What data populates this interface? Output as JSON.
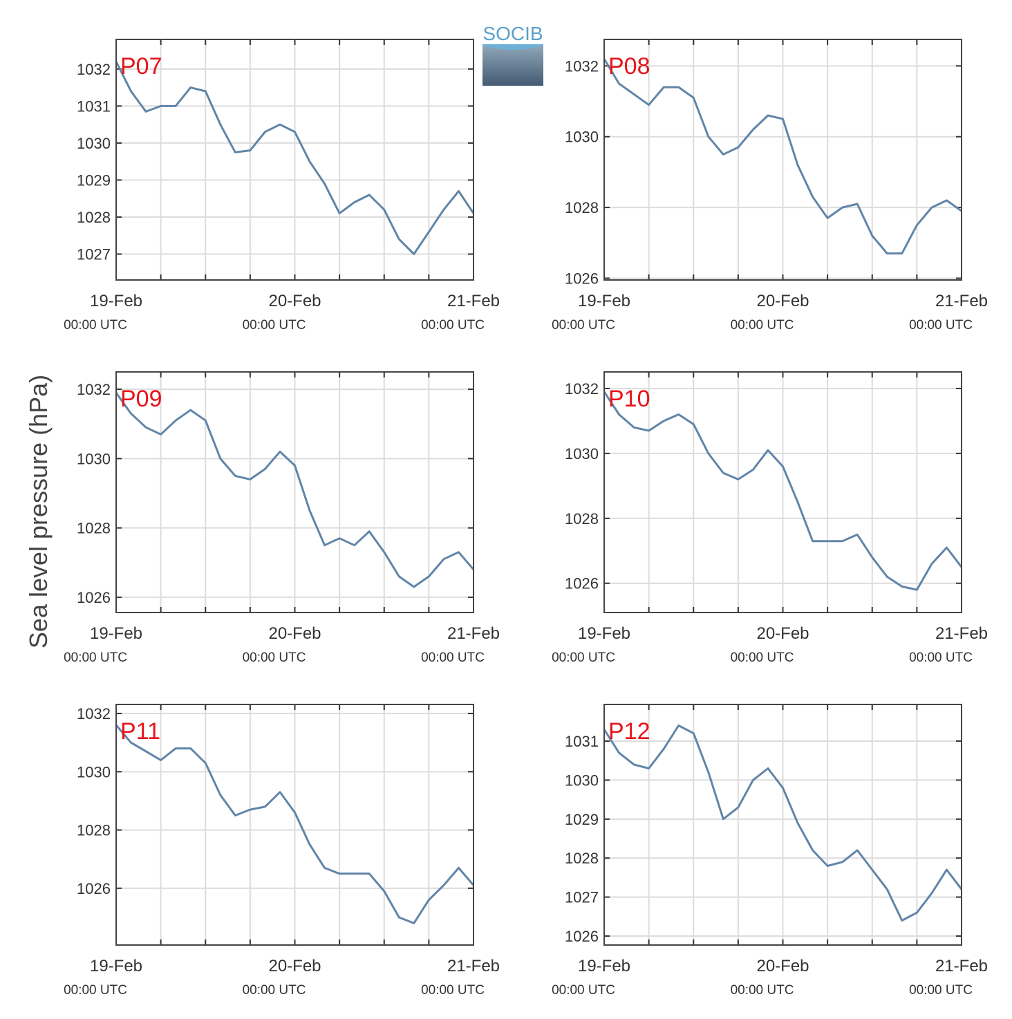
{
  "ylabel": "Sea level pressure (hPa)",
  "logo": "SOCIB",
  "chart_data": [
    {
      "type": "line",
      "label": "P07",
      "color": "#6185a8",
      "grid": true,
      "x": [
        "19-Feb 00:00",
        "19-Feb 02:00",
        "19-Feb 04:00",
        "19-Feb 06:00",
        "19-Feb 08:00",
        "19-Feb 10:00",
        "19-Feb 12:00",
        "19-Feb 14:00",
        "19-Feb 16:00",
        "19-Feb 18:00",
        "19-Feb 20:00",
        "19-Feb 22:00",
        "20-Feb 00:00",
        "20-Feb 02:00",
        "20-Feb 04:00",
        "20-Feb 06:00",
        "20-Feb 08:00",
        "20-Feb 10:00",
        "20-Feb 12:00",
        "20-Feb 14:00",
        "20-Feb 16:00",
        "20-Feb 18:00",
        "20-Feb 20:00",
        "20-Feb 22:00",
        "21-Feb 00:00"
      ],
      "values": [
        1032.2,
        1031.4,
        1030.85,
        1031.0,
        1031.0,
        1031.5,
        1031.4,
        1030.5,
        1029.75,
        1029.8,
        1030.3,
        1030.5,
        1030.3,
        1029.5,
        1028.9,
        1028.1,
        1028.4,
        1028.6,
        1028.2,
        1027.4,
        1027.0,
        1027.6,
        1028.2,
        1028.7,
        1028.1
      ],
      "ylim": [
        1026.3,
        1032.8
      ],
      "yticks": [
        1027,
        1028,
        1029,
        1030,
        1031,
        1032
      ],
      "xlim": [
        "19-Feb 00:00",
        "21-Feb 00:00"
      ],
      "xticks": [
        {
          "value": "19-Feb 00:00",
          "label": "19-Feb",
          "sublabel": "00:00 UTC"
        },
        {
          "value": "19-Feb 06:00"
        },
        {
          "value": "19-Feb 12:00"
        },
        {
          "value": "19-Feb 18:00"
        },
        {
          "value": "20-Feb 00:00",
          "label": "20-Feb",
          "sublabel": "00:00 UTC"
        },
        {
          "value": "20-Feb 06:00"
        },
        {
          "value": "20-Feb 12:00"
        },
        {
          "value": "20-Feb 18:00"
        },
        {
          "value": "21-Feb 00:00",
          "label": "21-Feb",
          "sublabel": "00:00 UTC"
        }
      ]
    },
    {
      "type": "line",
      "label": "P08",
      "color": "#6185a8",
      "grid": true,
      "x": [
        "19-Feb 00:00",
        "19-Feb 02:00",
        "19-Feb 04:00",
        "19-Feb 06:00",
        "19-Feb 08:00",
        "19-Feb 10:00",
        "19-Feb 12:00",
        "19-Feb 14:00",
        "19-Feb 16:00",
        "19-Feb 18:00",
        "19-Feb 20:00",
        "19-Feb 22:00",
        "20-Feb 00:00",
        "20-Feb 02:00",
        "20-Feb 04:00",
        "20-Feb 06:00",
        "20-Feb 08:00",
        "20-Feb 10:00",
        "20-Feb 12:00",
        "20-Feb 14:00",
        "20-Feb 16:00",
        "20-Feb 18:00",
        "20-Feb 20:00",
        "20-Feb 22:00",
        "21-Feb 00:00"
      ],
      "values": [
        1032.2,
        1031.5,
        1031.2,
        1030.9,
        1031.4,
        1031.4,
        1031.1,
        1030.0,
        1029.5,
        1029.7,
        1030.2,
        1030.6,
        1030.5,
        1029.2,
        1028.3,
        1027.7,
        1028.0,
        1028.1,
        1027.2,
        1026.7,
        1026.7,
        1027.5,
        1028.0,
        1028.2,
        1027.9
      ],
      "ylim": [
        1025.95,
        1032.75
      ],
      "yticks": [
        1026,
        1028,
        1030,
        1032
      ],
      "xlim": [
        "19-Feb 00:00",
        "21-Feb 00:00"
      ],
      "xticks": [
        {
          "value": "19-Feb 00:00",
          "label": "19-Feb",
          "sublabel": "00:00 UTC"
        },
        {
          "value": "19-Feb 06:00"
        },
        {
          "value": "19-Feb 12:00"
        },
        {
          "value": "19-Feb 18:00"
        },
        {
          "value": "20-Feb 00:00",
          "label": "20-Feb",
          "sublabel": "00:00 UTC"
        },
        {
          "value": "20-Feb 06:00"
        },
        {
          "value": "20-Feb 12:00"
        },
        {
          "value": "20-Feb 18:00"
        },
        {
          "value": "21-Feb 00:00",
          "label": "21-Feb",
          "sublabel": "00:00 UTC"
        }
      ]
    },
    {
      "type": "line",
      "label": "P09",
      "color": "#6185a8",
      "grid": true,
      "x": [
        "19-Feb 00:00",
        "19-Feb 02:00",
        "19-Feb 04:00",
        "19-Feb 06:00",
        "19-Feb 08:00",
        "19-Feb 10:00",
        "19-Feb 12:00",
        "19-Feb 14:00",
        "19-Feb 16:00",
        "19-Feb 18:00",
        "19-Feb 20:00",
        "19-Feb 22:00",
        "20-Feb 00:00",
        "20-Feb 02:00",
        "20-Feb 04:00",
        "20-Feb 06:00",
        "20-Feb 08:00",
        "20-Feb 10:00",
        "20-Feb 12:00",
        "20-Feb 14:00",
        "20-Feb 16:00",
        "20-Feb 18:00",
        "20-Feb 20:00",
        "20-Feb 22:00",
        "21-Feb 00:00"
      ],
      "values": [
        1031.9,
        1031.3,
        1030.9,
        1030.7,
        1031.1,
        1031.4,
        1031.1,
        1030.0,
        1029.5,
        1029.4,
        1029.7,
        1030.2,
        1029.8,
        1028.5,
        1027.5,
        1027.7,
        1027.5,
        1027.9,
        1027.3,
        1026.6,
        1026.3,
        1026.6,
        1027.1,
        1027.3,
        1026.8
      ],
      "ylim": [
        1025.56,
        1032.5
      ],
      "yticks": [
        1026,
        1028,
        1030,
        1032
      ],
      "xlim": [
        "19-Feb 00:00",
        "21-Feb 00:00"
      ],
      "xticks": [
        {
          "value": "19-Feb 00:00",
          "label": "19-Feb",
          "sublabel": "00:00 UTC"
        },
        {
          "value": "19-Feb 06:00"
        },
        {
          "value": "19-Feb 12:00"
        },
        {
          "value": "19-Feb 18:00"
        },
        {
          "value": "20-Feb 00:00",
          "label": "20-Feb",
          "sublabel": "00:00 UTC"
        },
        {
          "value": "20-Feb 06:00"
        },
        {
          "value": "20-Feb 12:00"
        },
        {
          "value": "20-Feb 18:00"
        },
        {
          "value": "21-Feb 00:00",
          "label": "21-Feb",
          "sublabel": "00:00 UTC"
        }
      ]
    },
    {
      "type": "line",
      "label": "P10",
      "color": "#6185a8",
      "grid": true,
      "x": [
        "19-Feb 00:00",
        "19-Feb 02:00",
        "19-Feb 04:00",
        "19-Feb 06:00",
        "19-Feb 08:00",
        "19-Feb 10:00",
        "19-Feb 12:00",
        "19-Feb 14:00",
        "19-Feb 16:00",
        "19-Feb 18:00",
        "19-Feb 20:00",
        "19-Feb 22:00",
        "20-Feb 00:00",
        "20-Feb 02:00",
        "20-Feb 04:00",
        "20-Feb 06:00",
        "20-Feb 08:00",
        "20-Feb 10:00",
        "20-Feb 12:00",
        "20-Feb 14:00",
        "20-Feb 16:00",
        "20-Feb 18:00",
        "20-Feb 20:00",
        "20-Feb 22:00",
        "21-Feb 00:00"
      ],
      "values": [
        1031.9,
        1031.2,
        1030.8,
        1030.7,
        1031.0,
        1031.2,
        1030.9,
        1030.0,
        1029.4,
        1029.2,
        1029.5,
        1030.1,
        1029.6,
        1028.5,
        1027.3,
        1027.3,
        1027.3,
        1027.5,
        1026.8,
        1026.2,
        1025.9,
        1025.8,
        1026.6,
        1027.1,
        1026.5
      ],
      "ylim": [
        1025.1,
        1032.51
      ],
      "yticks": [
        1026,
        1028,
        1030,
        1032
      ],
      "xlim": [
        "19-Feb 00:00",
        "21-Feb 00:00"
      ],
      "xticks": [
        {
          "value": "19-Feb 00:00",
          "label": "19-Feb",
          "sublabel": "00:00 UTC"
        },
        {
          "value": "19-Feb 06:00"
        },
        {
          "value": "19-Feb 12:00"
        },
        {
          "value": "19-Feb 18:00"
        },
        {
          "value": "20-Feb 00:00",
          "label": "20-Feb",
          "sublabel": "00:00 UTC"
        },
        {
          "value": "20-Feb 06:00"
        },
        {
          "value": "20-Feb 12:00"
        },
        {
          "value": "20-Feb 18:00"
        },
        {
          "value": "21-Feb 00:00",
          "label": "21-Feb",
          "sublabel": "00:00 UTC"
        }
      ]
    },
    {
      "type": "line",
      "label": "P11",
      "color": "#6185a8",
      "grid": true,
      "x": [
        "19-Feb 00:00",
        "19-Feb 02:00",
        "19-Feb 04:00",
        "19-Feb 06:00",
        "19-Feb 08:00",
        "19-Feb 10:00",
        "19-Feb 12:00",
        "19-Feb 14:00",
        "19-Feb 16:00",
        "19-Feb 18:00",
        "19-Feb 20:00",
        "19-Feb 22:00",
        "20-Feb 00:00",
        "20-Feb 02:00",
        "20-Feb 04:00",
        "20-Feb 06:00",
        "20-Feb 08:00",
        "20-Feb 10:00",
        "20-Feb 12:00",
        "20-Feb 14:00",
        "20-Feb 16:00",
        "20-Feb 18:00",
        "20-Feb 20:00",
        "20-Feb 22:00",
        "21-Feb 00:00"
      ],
      "values": [
        1031.6,
        1031.0,
        1030.7,
        1030.4,
        1030.8,
        1030.8,
        1030.3,
        1029.2,
        1028.5,
        1028.7,
        1028.8,
        1029.3,
        1028.6,
        1027.5,
        1026.7,
        1026.5,
        1026.5,
        1026.5,
        1025.9,
        1025.0,
        1024.8,
        1025.6,
        1026.1,
        1026.7,
        1026.1
      ],
      "ylim": [
        1024.05,
        1032.31
      ],
      "yticks": [
        1026,
        1028,
        1030,
        1032
      ],
      "xlim": [
        "19-Feb 00:00",
        "21-Feb 00:00"
      ],
      "xticks": [
        {
          "value": "19-Feb 00:00",
          "label": "19-Feb",
          "sublabel": "00:00 UTC"
        },
        {
          "value": "19-Feb 06:00"
        },
        {
          "value": "19-Feb 12:00"
        },
        {
          "value": "19-Feb 18:00"
        },
        {
          "value": "20-Feb 00:00",
          "label": "20-Feb",
          "sublabel": "00:00 UTC"
        },
        {
          "value": "20-Feb 06:00"
        },
        {
          "value": "20-Feb 12:00"
        },
        {
          "value": "20-Feb 18:00"
        },
        {
          "value": "21-Feb 00:00",
          "label": "21-Feb",
          "sublabel": "00:00 UTC"
        }
      ]
    },
    {
      "type": "line",
      "label": "P12",
      "color": "#6185a8",
      "grid": true,
      "x": [
        "19-Feb 00:00",
        "19-Feb 02:00",
        "19-Feb 04:00",
        "19-Feb 06:00",
        "19-Feb 08:00",
        "19-Feb 10:00",
        "19-Feb 12:00",
        "19-Feb 14:00",
        "19-Feb 16:00",
        "19-Feb 18:00",
        "19-Feb 20:00",
        "19-Feb 22:00",
        "20-Feb 00:00",
        "20-Feb 02:00",
        "20-Feb 04:00",
        "20-Feb 06:00",
        "20-Feb 08:00",
        "20-Feb 10:00",
        "20-Feb 12:00",
        "20-Feb 14:00",
        "20-Feb 16:00",
        "20-Feb 18:00",
        "20-Feb 20:00",
        "20-Feb 22:00",
        "21-Feb 00:00"
      ],
      "values": [
        1031.3,
        1030.7,
        1030.4,
        1030.3,
        1030.8,
        1031.4,
        1031.2,
        1030.2,
        1029.0,
        1029.3,
        1030.0,
        1030.3,
        1029.8,
        1028.9,
        1028.2,
        1027.8,
        1027.9,
        1028.2,
        1027.7,
        1027.2,
        1026.4,
        1026.6,
        1027.1,
        1027.7,
        1027.2
      ],
      "ylim": [
        1025.77,
        1031.94
      ],
      "yticks": [
        1026,
        1027,
        1028,
        1029,
        1030,
        1031
      ],
      "xlim": [
        "19-Feb 00:00",
        "21-Feb 00:00"
      ],
      "xticks": [
        {
          "value": "19-Feb 00:00",
          "label": "19-Feb",
          "sublabel": "00:00 UTC"
        },
        {
          "value": "19-Feb 06:00"
        },
        {
          "value": "19-Feb 12:00"
        },
        {
          "value": "19-Feb 18:00"
        },
        {
          "value": "20-Feb 00:00",
          "label": "20-Feb",
          "sublabel": "00:00 UTC"
        },
        {
          "value": "20-Feb 06:00"
        },
        {
          "value": "20-Feb 12:00"
        },
        {
          "value": "20-Feb 18:00"
        },
        {
          "value": "21-Feb 00:00",
          "label": "21-Feb",
          "sublabel": "00:00 UTC"
        }
      ]
    }
  ]
}
